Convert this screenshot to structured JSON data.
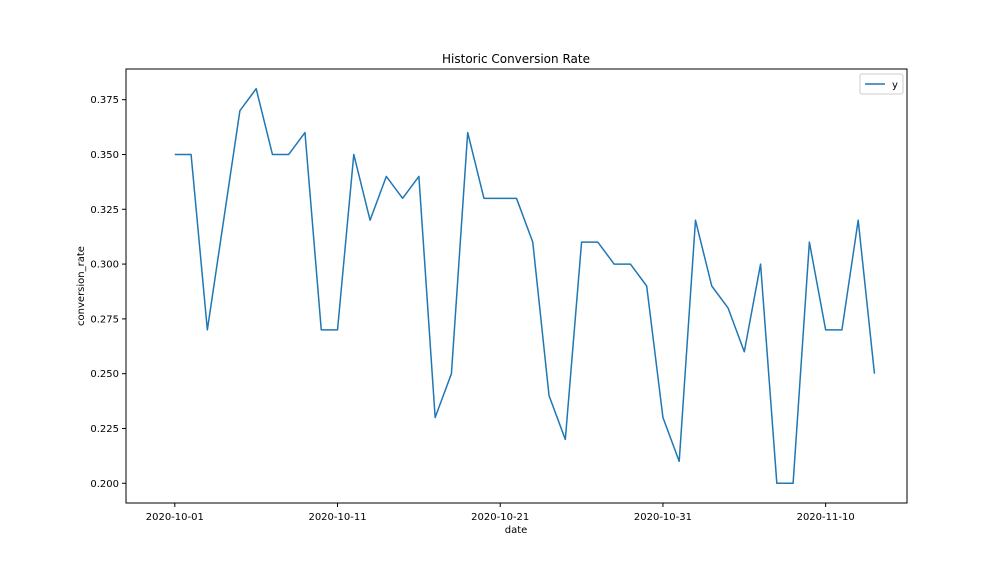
{
  "chart_data": {
    "type": "line",
    "title": "Historic Conversion Rate",
    "xlabel": "date",
    "ylabel": "conversion_rate",
    "x_tick_labels": [
      "2020-10-01",
      "2020-10-11",
      "2020-10-21",
      "2020-10-31",
      "2020-11-10"
    ],
    "y_tick_labels": [
      "0.200",
      "0.225",
      "0.250",
      "0.275",
      "0.300",
      "0.325",
      "0.350",
      "0.375"
    ],
    "y_ticks": [
      0.2,
      0.225,
      0.25,
      0.275,
      0.3,
      0.325,
      0.35,
      0.375
    ],
    "xlim": [
      "2020-09-28",
      "2020-11-15"
    ],
    "ylim": [
      0.191,
      0.389
    ],
    "grid": false,
    "legend_position": "top-right",
    "series": [
      {
        "name": "y",
        "color": "#1f77b4",
        "x": [
          "2020-10-01",
          "2020-10-02",
          "2020-10-03",
          "2020-10-04",
          "2020-10-05",
          "2020-10-06",
          "2020-10-07",
          "2020-10-08",
          "2020-10-09",
          "2020-10-10",
          "2020-10-11",
          "2020-10-12",
          "2020-10-13",
          "2020-10-14",
          "2020-10-15",
          "2020-10-16",
          "2020-10-17",
          "2020-10-18",
          "2020-10-19",
          "2020-10-20",
          "2020-10-21",
          "2020-10-22",
          "2020-10-23",
          "2020-10-24",
          "2020-10-25",
          "2020-10-26",
          "2020-10-27",
          "2020-10-28",
          "2020-10-29",
          "2020-10-30",
          "2020-10-31",
          "2020-11-01",
          "2020-11-02",
          "2020-11-03",
          "2020-11-04",
          "2020-11-05",
          "2020-11-06",
          "2020-11-07",
          "2020-11-08",
          "2020-11-09",
          "2020-11-10",
          "2020-11-11",
          "2020-11-12",
          "2020-11-13"
        ],
        "y": [
          0.35,
          0.35,
          0.27,
          0.32,
          0.37,
          0.38,
          0.35,
          0.35,
          0.36,
          0.27,
          0.27,
          0.35,
          0.32,
          0.34,
          0.33,
          0.34,
          0.23,
          0.25,
          0.36,
          0.33,
          0.33,
          0.33,
          0.31,
          0.24,
          0.22,
          0.31,
          0.31,
          0.3,
          0.3,
          0.29,
          0.23,
          0.21,
          0.32,
          0.29,
          0.28,
          0.26,
          0.3,
          0.2,
          0.2,
          0.31,
          0.27,
          0.27,
          0.32,
          0.25
        ]
      }
    ]
  }
}
